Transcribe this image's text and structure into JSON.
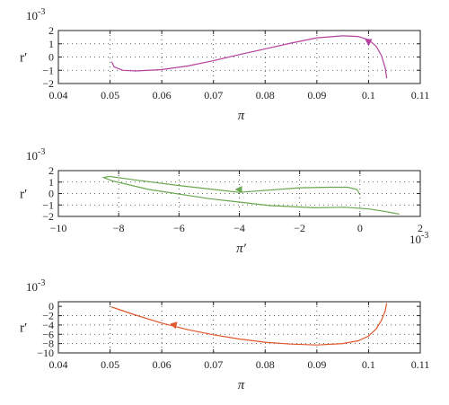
{
  "colors": {
    "axis": "#222222",
    "grid": "#333333"
  },
  "chart_data": [
    {
      "type": "line",
      "title": "",
      "xlabel": "π",
      "ylabel": "r′",
      "y_exponent_label": "10",
      "y_exponent_power": "-3",
      "x_exponent_label": "",
      "x_exponent_power": "",
      "xlim": [
        0.04,
        0.11
      ],
      "ylim": [
        -2,
        2
      ],
      "xticks": [
        0.04,
        0.05,
        0.06,
        0.07,
        0.08,
        0.09,
        0.1,
        0.11
      ],
      "xtick_labels": [
        "0.04",
        "0.05",
        "0.06",
        "0.07",
        "0.08",
        "0.09",
        "0.1",
        "0.11"
      ],
      "yticks": [
        -2,
        -1,
        0,
        1,
        2
      ],
      "ytick_labels": [
        "−2",
        "−1",
        "0",
        "1",
        "2"
      ],
      "grid": true,
      "series": [
        {
          "color": "#b5419f",
          "x": [
            0.0503,
            0.0508,
            0.0525,
            0.055,
            0.06,
            0.065,
            0.07,
            0.075,
            0.08,
            0.085,
            0.09,
            0.095,
            0.098,
            0.1,
            0.1015,
            0.1025,
            0.1032,
            0.1035
          ],
          "y": [
            -0.35,
            -0.75,
            -1.0,
            -1.05,
            -0.95,
            -0.68,
            -0.28,
            0.18,
            0.62,
            1.05,
            1.45,
            1.6,
            1.55,
            1.3,
            0.8,
            0.1,
            -0.8,
            -1.6
          ],
          "arrow": {
            "x": 0.1,
            "y": 1.15,
            "dir": "down"
          }
        }
      ]
    },
    {
      "type": "line",
      "title": "",
      "xlabel": "π′",
      "ylabel": "r′",
      "y_exponent_label": "10",
      "y_exponent_power": "-3",
      "x_exponent_label": "10",
      "x_exponent_power": "-3",
      "xlim": [
        -10,
        2
      ],
      "ylim": [
        -2,
        2
      ],
      "xticks": [
        -10,
        -8,
        -6,
        -4,
        -2,
        0,
        2
      ],
      "xtick_labels": [
        "−10",
        "−8",
        "−6",
        "−4",
        "−2",
        "0",
        "2"
      ],
      "yticks": [
        -2,
        -1,
        0,
        1,
        2
      ],
      "ytick_labels": [
        "−2",
        "−1",
        "0",
        "1",
        "2"
      ],
      "grid": true,
      "series": [
        {
          "color": "#6aa84f",
          "x": [
            0,
            -0.1,
            -0.4,
            -1.0,
            -2.0,
            -4.0,
            -6.0,
            -7.5,
            -8.3,
            -8.5,
            -8.2,
            -7.0,
            -5.0,
            -3.0,
            -1.5,
            -0.5,
            0.3,
            0.8,
            1.3
          ],
          "y": [
            -0.1,
            0.35,
            0.55,
            0.55,
            0.5,
            0.1,
            0.7,
            1.2,
            1.5,
            1.4,
            1.1,
            0.35,
            -0.45,
            -1.05,
            -1.25,
            -1.2,
            -1.35,
            -1.55,
            -1.8
          ],
          "arrow": {
            "x": -4.0,
            "y": 0.35,
            "dir": "left"
          }
        }
      ]
    },
    {
      "type": "line",
      "title": "",
      "xlabel": "π",
      "ylabel": "r′",
      "y_exponent_label": "10",
      "y_exponent_power": "-3",
      "x_exponent_label": "",
      "x_exponent_power": "",
      "xlim": [
        0.04,
        0.11
      ],
      "ylim": [
        -10,
        1
      ],
      "xticks": [
        0.04,
        0.05,
        0.06,
        0.07,
        0.08,
        0.09,
        0.1,
        0.11
      ],
      "xtick_labels": [
        "0.04",
        "0.05",
        "0.06",
        "0.07",
        "0.08",
        "0.09",
        "0.1",
        "0.11"
      ],
      "yticks": [
        -10,
        -8,
        -6,
        -4,
        -2,
        0
      ],
      "ytick_labels": [
        "−10",
        "−8",
        "−6",
        "−4",
        "−2",
        "0"
      ],
      "grid": true,
      "series": [
        {
          "color": "#e0572b",
          "x": [
            0.0502,
            0.055,
            0.06,
            0.065,
            0.07,
            0.075,
            0.08,
            0.085,
            0.09,
            0.095,
            0.098,
            0.1,
            0.1015,
            0.1025,
            0.1032,
            0.1035
          ],
          "y": [
            -0.1,
            -1.9,
            -3.6,
            -5.0,
            -6.1,
            -7.0,
            -7.7,
            -8.1,
            -8.3,
            -8.0,
            -7.4,
            -6.4,
            -4.8,
            -3.0,
            -1.0,
            0.7
          ],
          "arrow": {
            "x": 0.0625,
            "y": -4.1,
            "dir": "upleft"
          }
        }
      ]
    }
  ]
}
